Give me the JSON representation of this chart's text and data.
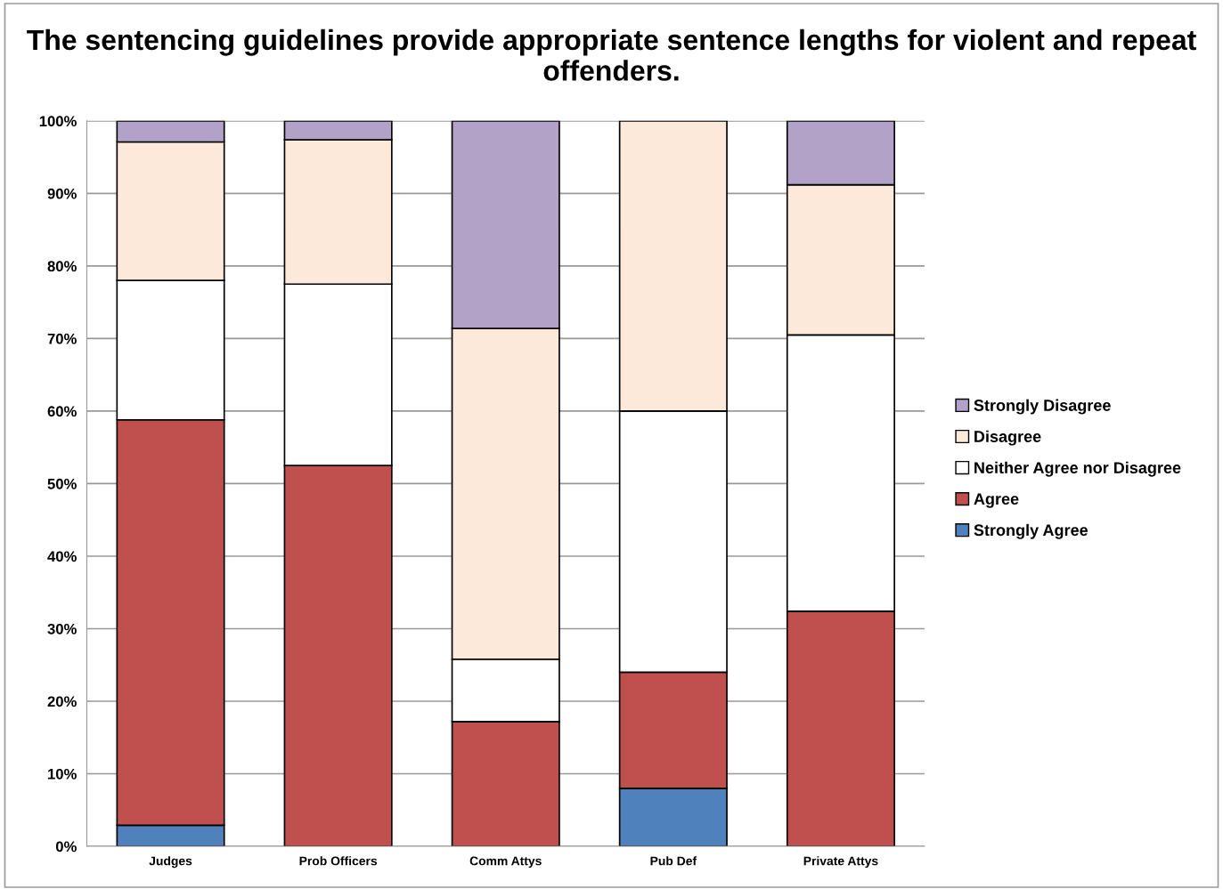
{
  "chart_data": {
    "type": "bar",
    "stacked": true,
    "title": "The sentencing guidelines provide appropriate sentence lengths for violent and repeat offenders.",
    "categories": [
      "Judges",
      "Prob Officers",
      "Comm Attys",
      "Pub Def",
      "Private Attys"
    ],
    "series": [
      {
        "name": "Strongly Agree",
        "color": "#4f81bd",
        "values": [
          2.9,
          0,
          0,
          8.0,
          0
        ]
      },
      {
        "name": "Agree",
        "color": "#c0504d",
        "values": [
          55.9,
          52.5,
          17.2,
          16.0,
          32.4
        ]
      },
      {
        "name": "Neither Agree nor Disagree",
        "color": "#ffffff",
        "values": [
          19.2,
          25.0,
          8.6,
          36.0,
          38.1
        ]
      },
      {
        "name": "Disagree",
        "color": "#fde9d9",
        "values": [
          19.1,
          19.9,
          45.6,
          40.0,
          20.7
        ]
      },
      {
        "name": "Strongly Disagree",
        "color": "#b2a2c7",
        "values": [
          2.9,
          2.6,
          28.6,
          0,
          8.8
        ]
      }
    ],
    "ylim": [
      0,
      100
    ],
    "yticks": [
      {
        "value": 0,
        "label": "0%"
      },
      {
        "value": 10,
        "label": "10%"
      },
      {
        "value": 20,
        "label": "20%"
      },
      {
        "value": 30,
        "label": "30%"
      },
      {
        "value": 40,
        "label": "40%"
      },
      {
        "value": 50,
        "label": "50%"
      },
      {
        "value": 60,
        "label": "60%"
      },
      {
        "value": 70,
        "label": "70%"
      },
      {
        "value": 80,
        "label": "80%"
      },
      {
        "value": 90,
        "label": "90%"
      },
      {
        "value": 100,
        "label": "100%"
      }
    ],
    "grid": "y",
    "legend": "right"
  }
}
